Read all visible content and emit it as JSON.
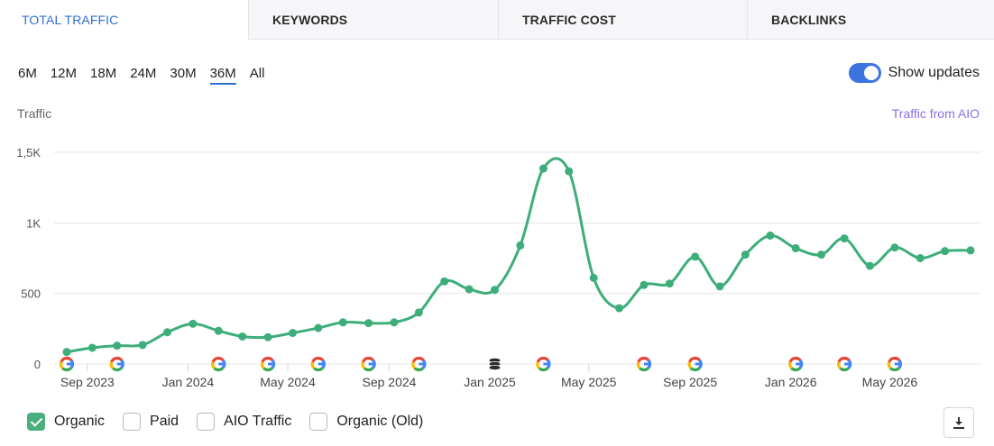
{
  "tabs": [
    {
      "label": "TOTAL TRAFFIC",
      "active": true
    },
    {
      "label": "KEYWORDS",
      "active": false
    },
    {
      "label": "TRAFFIC COST",
      "active": false
    },
    {
      "label": "BACKLINKS",
      "active": false
    }
  ],
  "ranges": [
    {
      "label": "6M",
      "active": false
    },
    {
      "label": "12M",
      "active": false
    },
    {
      "label": "18M",
      "active": false
    },
    {
      "label": "24M",
      "active": false
    },
    {
      "label": "30M",
      "active": false
    },
    {
      "label": "36M",
      "active": true
    },
    {
      "label": "All",
      "active": false
    }
  ],
  "toggle": {
    "label": "Show updates",
    "on": true
  },
  "aio_link": "Traffic from AIO",
  "legend": [
    {
      "label": "Organic",
      "checked": true
    },
    {
      "label": "Paid",
      "checked": false
    },
    {
      "label": "AIO Traffic",
      "checked": false
    },
    {
      "label": "Organic (Old)",
      "checked": false
    }
  ],
  "icons": {
    "download": "download-icon",
    "google": "google-update-icon",
    "database": "database-update-icon"
  },
  "colors": {
    "accent": "#2f6fd6",
    "series": "#3dae7a",
    "aio": "#8a6fe6",
    "toggle": "#3b73e0"
  },
  "chart_data": {
    "type": "line",
    "ylabel": "Traffic",
    "ylim": [
      0,
      1500
    ],
    "yticks": [
      {
        "value": 0,
        "label": "0"
      },
      {
        "value": 500,
        "label": "500"
      },
      {
        "value": 1000,
        "label": "1K"
      },
      {
        "value": 1500,
        "label": "1,5K"
      }
    ],
    "xticks": [
      {
        "x": "2023-09",
        "label": "Sep 2023"
      },
      {
        "x": "2024-01",
        "label": "Jan 2024"
      },
      {
        "x": "2024-05",
        "label": "May 2024"
      },
      {
        "x": "2024-09",
        "label": "Sep 2024"
      },
      {
        "x": "2025-01",
        "label": "Jan 2025"
      },
      {
        "x": "2025-05",
        "label": "May 2025"
      },
      {
        "x": "2025-09",
        "label": "Sep 2025"
      },
      {
        "x": "2026-01",
        "label": "Jan 2026"
      },
      {
        "x": "2026-05",
        "label": "May 2026"
      }
    ],
    "grid": true,
    "series": [
      {
        "name": "Organic",
        "x": [
          "2023-08-07",
          "2023-08-20",
          "2023-09-03",
          "2023-09-17",
          "2023-10-01",
          "2023-10-15",
          "2023-10-29",
          "2023-11-12",
          "2023-11-26",
          "2023-12-10",
          "2023-12-24",
          "2024-01-07",
          "2024-01-21",
          "2024-02-04",
          "2024-02-18",
          "2024-03-03",
          "2024-03-17",
          "2024-03-31",
          "2024-04-14",
          "2024-04-28",
          "2024-05-12",
          "2024-05-26",
          "2024-06-09",
          "2024-06-23",
          "2024-07-07",
          "2024-07-21",
          "2024-08-04",
          "2024-08-18",
          "2024-09-01",
          "2024-09-15",
          "2024-09-29",
          "2024-10-13",
          "2024-10-27",
          "2024-11-10",
          "2024-11-24",
          "2024-12-08",
          "2024-12-22",
          "2025-01-05",
          "2025-01-19",
          "2025-02-02",
          "2025-02-16",
          "2025-03-02",
          "2025-03-16",
          "2025-03-30",
          "2025-04-13",
          "2025-04-27",
          "2025-05-11",
          "2025-05-25",
          "2025-06-08",
          "2025-06-22",
          "2025-07-06",
          "2025-07-20",
          "2025-08-03",
          "2025-08-17",
          "2025-08-31",
          "2025-09-14",
          "2025-09-28",
          "2025-10-12",
          "2025-10-26",
          "2025-11-09",
          "2025-11-23",
          "2025-12-07",
          "2025-12-21",
          "2026-01-04",
          "2026-01-18",
          "2026-02-01",
          "2026-02-15",
          "2026-03-01",
          "2026-03-15",
          "2026-03-29",
          "2026-04-12",
          "2026-04-26",
          "2026-05-10",
          "2026-05-24",
          "2026-06-07",
          "2026-06-21",
          "2026-07-05",
          "2026-07-19",
          "2026-08-02",
          "2026-08-16",
          "2026-08-30",
          "2026-09-13",
          "2026-09-27",
          "2026-10-11",
          "2026-10-25"
        ],
        "points": [
          {
            "x": "2023-08-07",
            "y": 85
          },
          {
            "x": "2023-09-07",
            "y": 115
          },
          {
            "x": "2023-10-07",
            "y": 130
          },
          {
            "x": "2023-11-07",
            "y": 135
          },
          {
            "x": "2023-12-07",
            "y": 225
          },
          {
            "x": "2024-01-07",
            "y": 285
          },
          {
            "x": "2024-02-07",
            "y": 235
          },
          {
            "x": "2024-03-07",
            "y": 195
          },
          {
            "x": "2024-04-07",
            "y": 190
          },
          {
            "x": "2024-05-07",
            "y": 220
          },
          {
            "x": "2024-06-07",
            "y": 255
          },
          {
            "x": "2024-07-07",
            "y": 295
          },
          {
            "x": "2024-08-07",
            "y": 290
          },
          {
            "x": "2024-09-07",
            "y": 295
          },
          {
            "x": "2024-10-07",
            "y": 365
          },
          {
            "x": "2024-11-07",
            "y": 585
          },
          {
            "x": "2024-12-07",
            "y": 530
          },
          {
            "x": "2025-01-07",
            "y": 525
          },
          {
            "x": "2025-02-07",
            "y": 840
          },
          {
            "x": "2025-03-07",
            "y": 1385
          },
          {
            "x": "2025-04-07",
            "y": 1365
          },
          {
            "x": "2025-05-07",
            "y": 610
          },
          {
            "x": "2025-06-07",
            "y": 395
          },
          {
            "x": "2025-07-07",
            "y": 560
          },
          {
            "x": "2025-08-07",
            "y": 570
          },
          {
            "x": "2025-09-07",
            "y": 760
          },
          {
            "x": "2025-10-07",
            "y": 550
          },
          {
            "x": "2025-11-07",
            "y": 775
          },
          {
            "x": "2025-12-07",
            "y": 910
          },
          {
            "x": "2026-01-07",
            "y": 820
          },
          {
            "x": "2026-02-07",
            "y": 775
          },
          {
            "x": "2026-03-07",
            "y": 890
          },
          {
            "x": "2026-04-07",
            "y": 695
          },
          {
            "x": "2026-05-07",
            "y": 825
          },
          {
            "x": "2026-06-07",
            "y": 750
          },
          {
            "x": "2026-07-07",
            "y": 800
          },
          {
            "x": "2026-08-07",
            "y": 805
          }
        ]
      }
    ],
    "update_markers": [
      {
        "date": "2023-08-07",
        "type": "google"
      },
      {
        "date": "2023-10-07",
        "type": "google"
      },
      {
        "date": "2024-02-07",
        "type": "google"
      },
      {
        "date": "2024-04-07",
        "type": "google"
      },
      {
        "date": "2024-06-07",
        "type": "google"
      },
      {
        "date": "2024-08-07",
        "type": "google"
      },
      {
        "date": "2024-10-07",
        "type": "google"
      },
      {
        "date": "2025-01-07",
        "type": "database"
      },
      {
        "date": "2025-03-07",
        "type": "google"
      },
      {
        "date": "2025-07-07",
        "type": "google"
      },
      {
        "date": "2025-09-07",
        "type": "google"
      },
      {
        "date": "2026-01-07",
        "type": "google"
      },
      {
        "date": "2026-03-07",
        "type": "google"
      },
      {
        "date": "2026-05-07",
        "type": "google"
      }
    ]
  }
}
